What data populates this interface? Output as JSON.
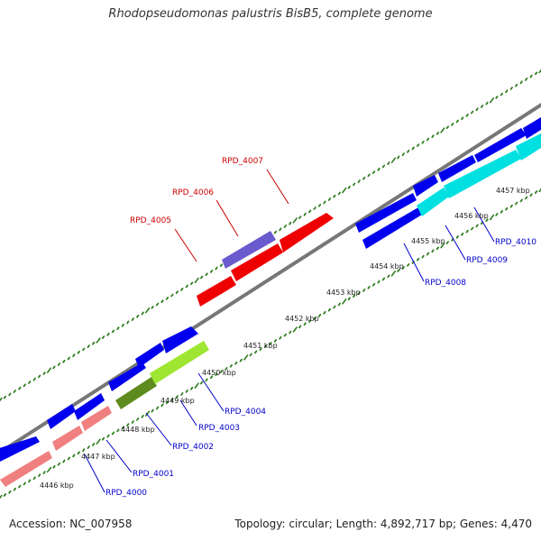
{
  "title": "Rhodopseudomonas palustris BisB5, complete genome",
  "footer": {
    "accession": "Accession: NC_007958",
    "summary": "Topology: circular; Length: 4,892,717 bp; Genes: 4,470"
  },
  "colors": {
    "backbone": "#888888",
    "tick_green": "#2e7d1e",
    "callout_red": "#cc0000",
    "callout_blue": "#0000cc",
    "gene_blue": "#0000ee",
    "gene_red": "#ee0000",
    "gene_pink": "#f08080",
    "gene_slate": "#6a5acd",
    "gene_cyan": "#00e0e0",
    "gene_lime": "#9ee632",
    "gene_olive": "#5e8b1e"
  },
  "scale_labels": [
    "4446 kbp",
    "4447 kbp",
    "4448 kbp",
    "4449 kbp",
    "4450 kbp",
    "4451 kbp",
    "4452 kbp",
    "4453 kbp",
    "4454 kbp",
    "4455 kbp",
    "4456 kbp",
    "4457 kbp"
  ],
  "gene_labels": [
    {
      "text": "RPD_4007",
      "color": "red"
    },
    {
      "text": "RPD_4006",
      "color": "red"
    },
    {
      "text": "RPD_4005",
      "color": "red"
    },
    {
      "text": "RPD_4004",
      "color": "blue"
    },
    {
      "text": "RPD_4003",
      "color": "blue"
    },
    {
      "text": "RPD_4002",
      "color": "blue"
    },
    {
      "text": "RPD_4001",
      "color": "blue"
    },
    {
      "text": "RPD_4000",
      "color": "blue"
    },
    {
      "text": "RPD_4008",
      "color": "blue"
    },
    {
      "text": "RPD_4009",
      "color": "blue"
    },
    {
      "text": "RPD_4010",
      "color": "blue"
    }
  ]
}
